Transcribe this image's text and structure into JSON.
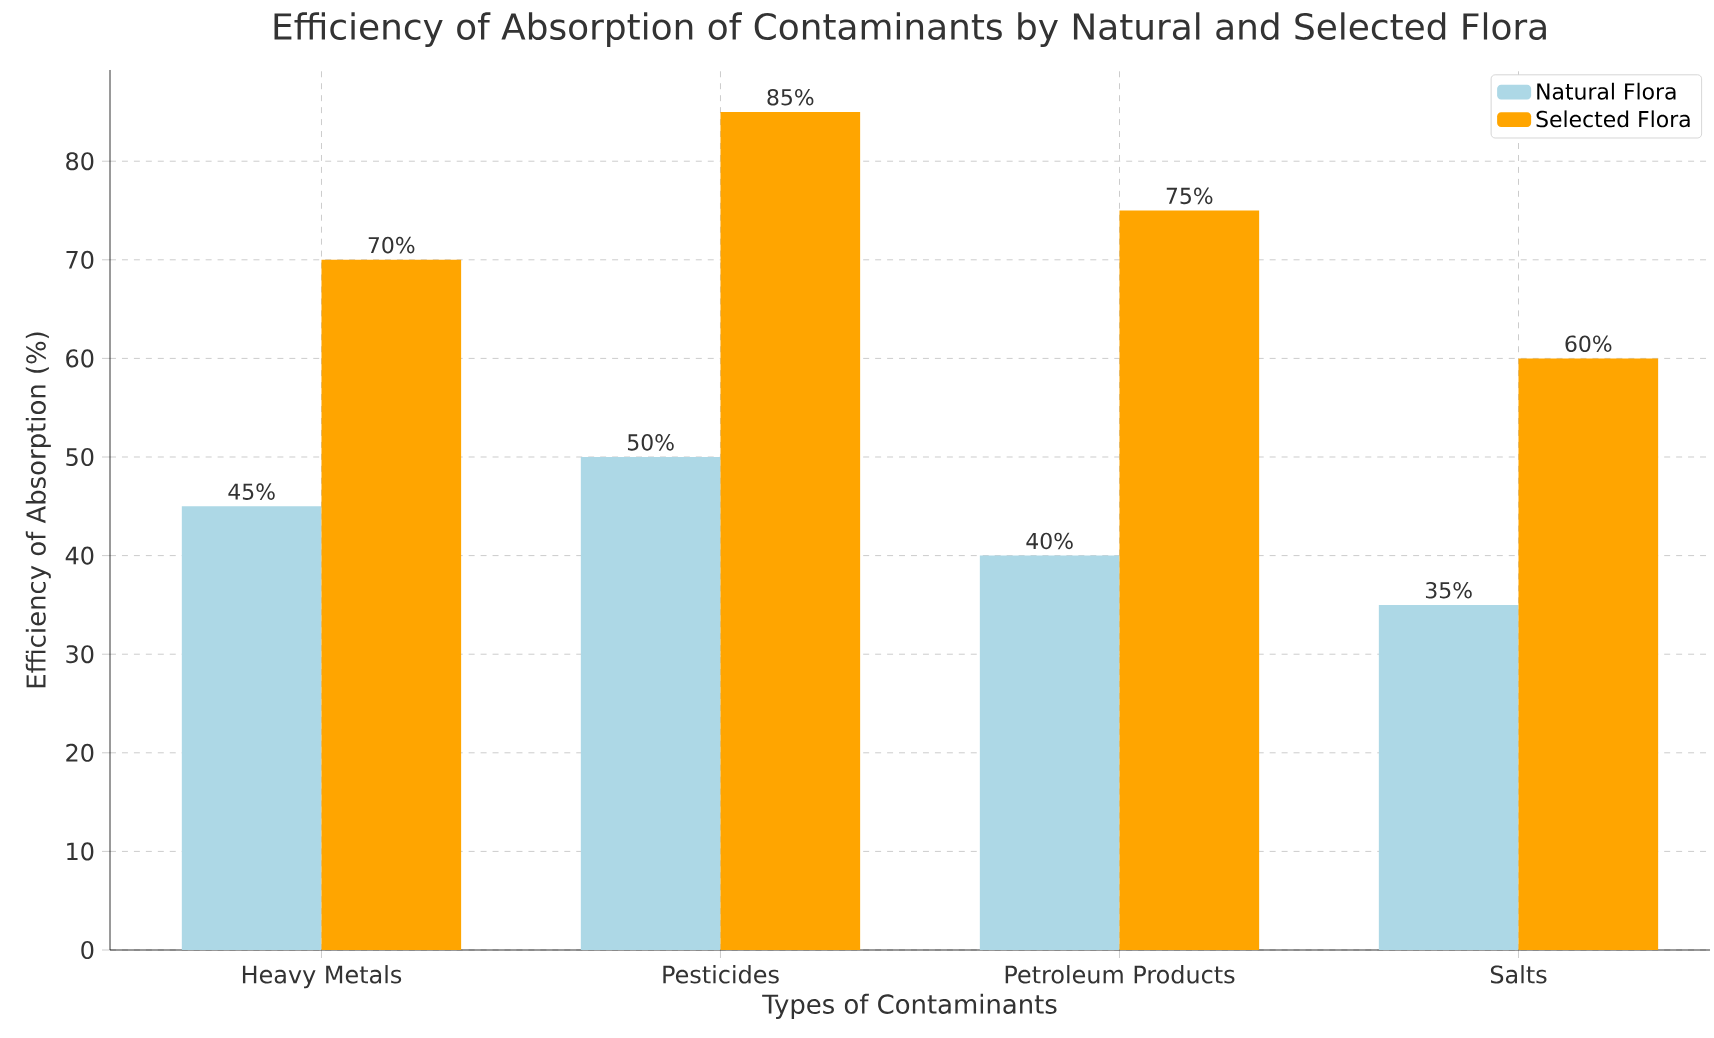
{
  "chart_data": {
    "type": "bar",
    "title": "Efficiency of Absorption of Contaminants by Natural and Selected Flora",
    "xlabel": "Types of Contaminants",
    "ylabel": "Efficiency of Absorption (%)",
    "categories": [
      "Heavy Metals",
      "Pesticides",
      "Petroleum Products",
      "Salts"
    ],
    "series": [
      {
        "name": "Natural Flora",
        "color": "#add8e6",
        "values": [
          45,
          50,
          40,
          35
        ],
        "value_labels": [
          "45%",
          "50%",
          "40%",
          "35%"
        ]
      },
      {
        "name": "Selected Flora",
        "color": "#ffa500",
        "values": [
          70,
          85,
          75,
          60
        ],
        "value_labels": [
          "70%",
          "85%",
          "75%",
          "60%"
        ]
      }
    ],
    "ylim": [
      0,
      89.25
    ],
    "yticks": [
      0,
      10,
      20,
      30,
      40,
      50,
      60,
      70,
      80
    ],
    "grid": true,
    "legend": "top right"
  }
}
